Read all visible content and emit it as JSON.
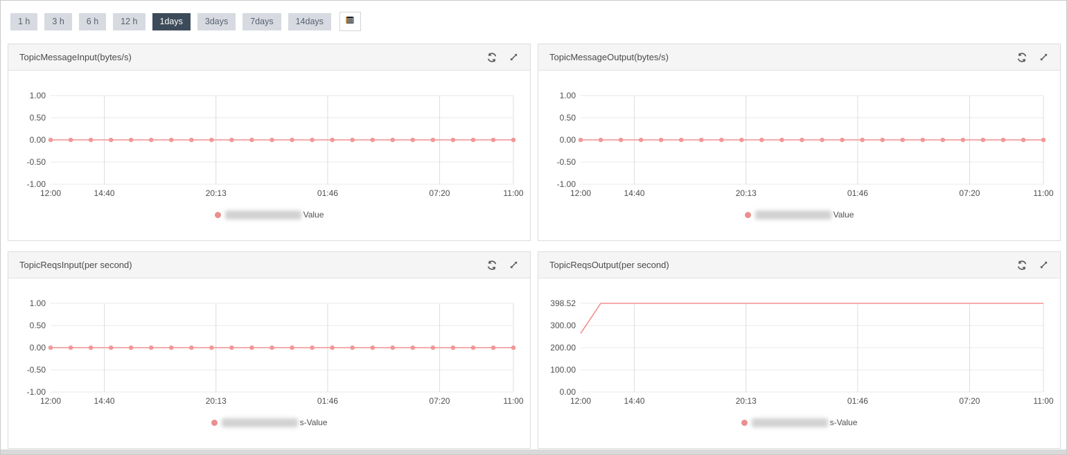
{
  "toolbar": {
    "time_ranges": [
      {
        "label": "1 h",
        "selected": false
      },
      {
        "label": "3 h",
        "selected": false
      },
      {
        "label": "6 h",
        "selected": false
      },
      {
        "label": "12 h",
        "selected": false
      },
      {
        "label": "1days",
        "selected": true
      },
      {
        "label": "3days",
        "selected": false
      },
      {
        "label": "7days",
        "selected": false
      },
      {
        "label": "14days",
        "selected": false
      }
    ]
  },
  "colors": {
    "series_line": "#f19191",
    "series_marker": "#ef8c8c",
    "selected_range_bg": "#3d4a59",
    "range_bg": "#d7dae1",
    "grid_horizontal": "#e9e9e9",
    "grid_vertical": "#dcdcdc",
    "axis_label": "#4d4d4d",
    "panel_header_bg": "#f5f5f6"
  },
  "chart_data": [
    {
      "type": "line",
      "title": "TopicMessageInput(bytes/s)",
      "y_tick_labels": [
        "1.00",
        "0.50",
        "0.00",
        "-0.50",
        "-1.00"
      ],
      "y_min": -1,
      "y_max": 1,
      "x_tick_labels": [
        "12:00",
        "14:40",
        "20:13",
        "01:46",
        "07:20",
        "11:00"
      ],
      "x_tick_hours": [
        0,
        2.67,
        8.22,
        13.77,
        19.33,
        23
      ],
      "x_total_hours": 23,
      "grid": true,
      "legend_position": "bottom",
      "series": [
        {
          "name_redacted": true,
          "legend_suffix": "Value",
          "color": "#f19191",
          "points": [
            {
              "h": 0,
              "v": 0
            },
            {
              "h": 23,
              "v": 0
            }
          ],
          "marker_every_hours": 1
        }
      ]
    },
    {
      "type": "line",
      "title": "TopicMessageOutput(bytes/s)",
      "y_tick_labels": [
        "1.00",
        "0.50",
        "0.00",
        "-0.50",
        "-1.00"
      ],
      "y_min": -1,
      "y_max": 1,
      "x_tick_labels": [
        "12:00",
        "14:40",
        "20:13",
        "01:46",
        "07:20",
        "11:00"
      ],
      "x_tick_hours": [
        0,
        2.67,
        8.22,
        13.77,
        19.33,
        23
      ],
      "x_total_hours": 23,
      "grid": true,
      "legend_position": "bottom",
      "series": [
        {
          "name_redacted": true,
          "legend_suffix": "Value",
          "color": "#f19191",
          "points": [
            {
              "h": 0,
              "v": 0
            },
            {
              "h": 23,
              "v": 0
            }
          ],
          "marker_every_hours": 1
        }
      ]
    },
    {
      "type": "line",
      "title": "TopicReqsInput(per second)",
      "y_tick_labels": [
        "1.00",
        "0.50",
        "0.00",
        "-0.50",
        "-1.00"
      ],
      "y_min": -1,
      "y_max": 1,
      "x_tick_labels": [
        "12:00",
        "14:40",
        "20:13",
        "01:46",
        "07:20",
        "11:00"
      ],
      "x_tick_hours": [
        0,
        2.67,
        8.22,
        13.77,
        19.33,
        23
      ],
      "x_total_hours": 23,
      "grid": true,
      "legend_position": "bottom",
      "series": [
        {
          "name_redacted": true,
          "legend_suffix": "s-Value",
          "color": "#f19191",
          "points": [
            {
              "h": 0,
              "v": 0
            },
            {
              "h": 23,
              "v": 0
            }
          ],
          "marker_every_hours": 1
        }
      ]
    },
    {
      "type": "line",
      "title": "TopicReqsOutput(per second)",
      "y_tick_labels": [
        "398.52",
        "300.00",
        "200.00",
        "100.00",
        "0.00"
      ],
      "y_min": 0,
      "y_max": 398.52,
      "x_tick_labels": [
        "12:00",
        "14:40",
        "20:13",
        "01:46",
        "07:20",
        "11:00"
      ],
      "x_tick_hours": [
        0,
        2.67,
        8.22,
        13.77,
        19.33,
        23
      ],
      "x_total_hours": 23,
      "grid": true,
      "legend_position": "bottom",
      "series": [
        {
          "name_redacted": true,
          "legend_suffix": "s-Value",
          "color": "#f19191",
          "points": [
            {
              "h": 0,
              "v": 263
            },
            {
              "h": 1,
              "v": 398.52
            },
            {
              "h": 23,
              "v": 398.52
            }
          ],
          "marker_every_hours": 0
        }
      ]
    }
  ]
}
